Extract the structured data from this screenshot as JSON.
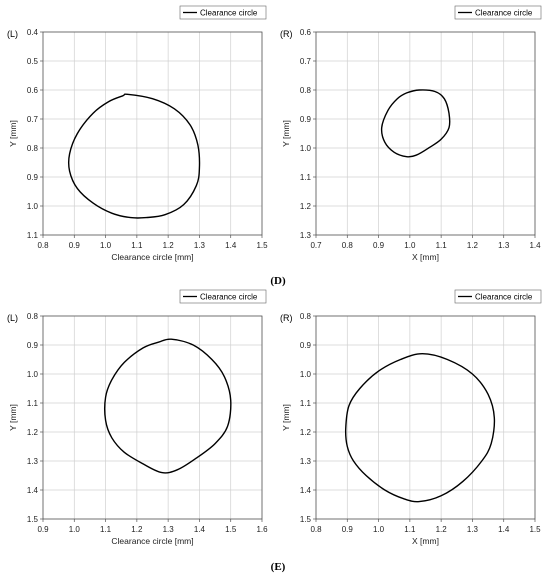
{
  "figure_labels": [
    "(D)",
    "(E)"
  ],
  "chart_data": [
    {
      "type": "line",
      "panel_label": "(L)",
      "legend": "Clearance circle",
      "xlabel": "Clearance circle  [mm]",
      "ylabel": "Y  [mm]",
      "xlim": [
        0.8,
        1.5
      ],
      "ylim": [
        0.4,
        1.1
      ],
      "y_inverted": true,
      "xticks": [
        "0.8",
        "0.9",
        "1.0",
        "1.1",
        "1.2",
        "1.3",
        "1.4",
        "1.5"
      ],
      "yticks": [
        "0.4",
        "0.5",
        "0.6",
        "0.7",
        "0.8",
        "0.9",
        "1.0",
        "1.1"
      ],
      "grid": true,
      "series": [
        {
          "name": "Clearance circle",
          "x": [
            1.07,
            1.15,
            1.22,
            1.27,
            1.295,
            1.3,
            1.29,
            1.25,
            1.19,
            1.13,
            1.08,
            1.02,
            0.96,
            0.91,
            0.885,
            0.885,
            0.91,
            0.96,
            1.01,
            1.055,
            1.07
          ],
          "y": [
            0.615,
            0.63,
            0.665,
            0.72,
            0.79,
            0.87,
            0.93,
            0.995,
            1.03,
            1.04,
            1.04,
            1.025,
            0.99,
            0.94,
            0.88,
            0.82,
            0.75,
            0.68,
            0.64,
            0.62,
            0.615
          ]
        }
      ]
    },
    {
      "type": "line",
      "panel_label": "(R)",
      "legend": "Clearance circle",
      "xlabel": "X  [mm]",
      "ylabel": "Y  [mm]",
      "xlim": [
        0.7,
        1.4
      ],
      "ylim": [
        0.6,
        1.3
      ],
      "y_inverted": true,
      "xticks": [
        "0.7",
        "0.8",
        "0.9",
        "1.0",
        "1.1",
        "1.2",
        "1.3",
        "1.4"
      ],
      "yticks": [
        "0.6",
        "0.7",
        "0.8",
        "0.9",
        "1.0",
        "1.1",
        "1.2",
        "1.3"
      ],
      "grid": true,
      "series": [
        {
          "name": "Clearance circle",
          "x": [
            1.03,
            1.08,
            1.11,
            1.125,
            1.125,
            1.1,
            1.06,
            1.02,
            0.99,
            0.95,
            0.92,
            0.91,
            0.93,
            0.96,
            0.99,
            1.03
          ],
          "y": [
            0.8,
            0.805,
            0.83,
            0.88,
            0.93,
            0.97,
            1.0,
            1.025,
            1.03,
            1.015,
            0.98,
            0.93,
            0.87,
            0.83,
            0.81,
            0.8
          ]
        }
      ]
    },
    {
      "type": "line",
      "panel_label": "(L)",
      "legend": "Clearance circle",
      "xlabel": "Clearance circle  [mm]",
      "ylabel": "Y  [mm]",
      "xlim": [
        0.9,
        1.6
      ],
      "ylim": [
        0.8,
        1.5
      ],
      "y_inverted": true,
      "xticks": [
        "0.9",
        "1.0",
        "1.1",
        "1.2",
        "1.3",
        "1.4",
        "1.5",
        "1.6"
      ],
      "yticks": [
        "0.8",
        "0.9",
        "1.0",
        "1.1",
        "1.2",
        "1.3",
        "1.4",
        "1.5"
      ],
      "grid": true,
      "series": [
        {
          "name": "Clearance circle",
          "x": [
            1.31,
            1.38,
            1.44,
            1.48,
            1.5,
            1.49,
            1.45,
            1.39,
            1.33,
            1.28,
            1.22,
            1.16,
            1.12,
            1.1,
            1.1,
            1.12,
            1.16,
            1.22,
            1.27,
            1.31
          ],
          "y": [
            0.88,
            0.9,
            0.95,
            1.01,
            1.09,
            1.18,
            1.24,
            1.29,
            1.33,
            1.34,
            1.31,
            1.27,
            1.22,
            1.16,
            1.08,
            1.02,
            0.96,
            0.91,
            0.89,
            0.88
          ]
        }
      ]
    },
    {
      "type": "line",
      "panel_label": "(R)",
      "legend": "Clearance circle",
      "xlabel": "X  [mm]",
      "ylabel": "Y  [mm]",
      "xlim": [
        0.8,
        1.5
      ],
      "ylim": [
        0.8,
        1.5
      ],
      "y_inverted": true,
      "xticks": [
        "0.8",
        "0.9",
        "1.0",
        "1.1",
        "1.2",
        "1.3",
        "1.4",
        "1.5"
      ],
      "yticks": [
        "0.8",
        "0.9",
        "1.0",
        "1.1",
        "1.2",
        "1.3",
        "1.4",
        "1.5"
      ],
      "grid": true,
      "series": [
        {
          "name": "Clearance circle",
          "x": [
            1.14,
            1.22,
            1.3,
            1.35,
            1.37,
            1.36,
            1.33,
            1.27,
            1.2,
            1.13,
            1.08,
            1.02,
            0.96,
            0.92,
            0.9,
            0.895,
            0.905,
            0.94,
            1.0,
            1.07,
            1.14
          ],
          "y": [
            0.93,
            0.95,
            1.0,
            1.07,
            1.15,
            1.24,
            1.3,
            1.37,
            1.42,
            1.44,
            1.43,
            1.4,
            1.35,
            1.3,
            1.25,
            1.19,
            1.11,
            1.05,
            0.99,
            0.95,
            0.93
          ]
        }
      ]
    }
  ]
}
